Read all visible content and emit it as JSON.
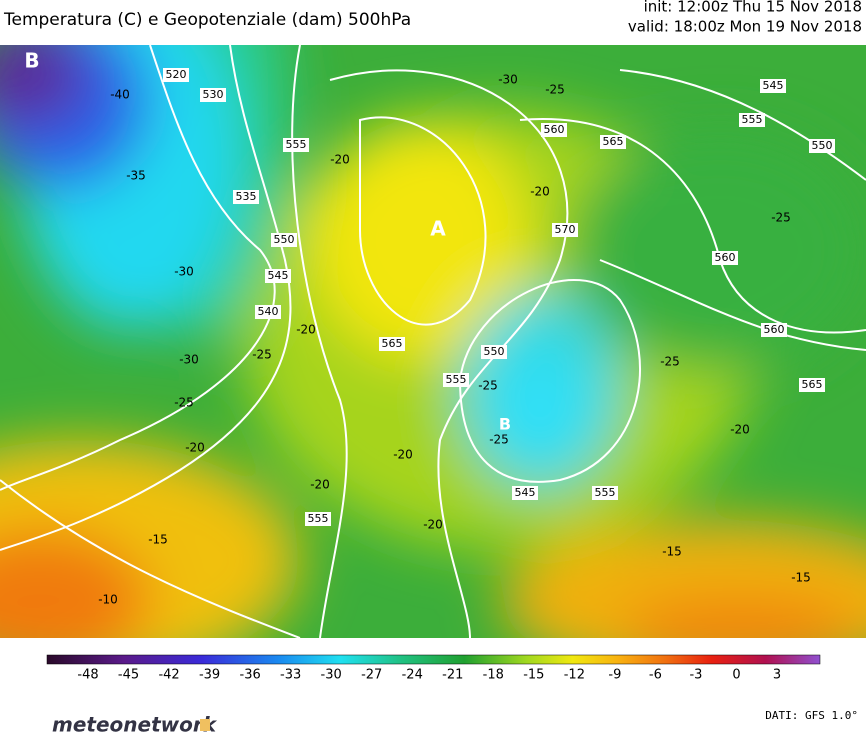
{
  "header": {
    "title": "Temperatura (C) e Geopotenziale (dam) 500hPa",
    "init": "init: 12:00z Thu 15 Nov 2018",
    "valid": "valid: 18:00z Mon 19 Nov 2018"
  },
  "map": {
    "pressure_centers": [
      "B",
      "A",
      "B"
    ],
    "height_labels": [
      "520",
      "530",
      "555",
      "535",
      "550",
      "545",
      "540",
      "560",
      "565",
      "545",
      "555",
      "550",
      "570",
      "560",
      "560",
      "565",
      "565",
      "555",
      "550",
      "555",
      "545",
      "555"
    ],
    "temperature_labels": [
      "-30",
      "-25",
      "-20",
      "-20",
      "-40",
      "-35",
      "-30",
      "-30",
      "-25",
      "-25",
      "-20",
      "-20",
      "-15",
      "-10",
      "-20",
      "-20",
      "-20",
      "-25",
      "-25",
      "-25",
      "-20",
      "-25",
      "-15",
      "-15"
    ]
  },
  "colorbar": {
    "ticks": [
      "-48",
      "-45",
      "-42",
      "-39",
      "-36",
      "-33",
      "-30",
      "-27",
      "-24",
      "-21",
      "-18",
      "-15",
      "-12",
      "-9",
      "-6",
      "-3",
      "0",
      "3"
    ]
  },
  "footer": {
    "brand": "meteonetwork",
    "source": "DATI: GFS 1.0°"
  }
}
